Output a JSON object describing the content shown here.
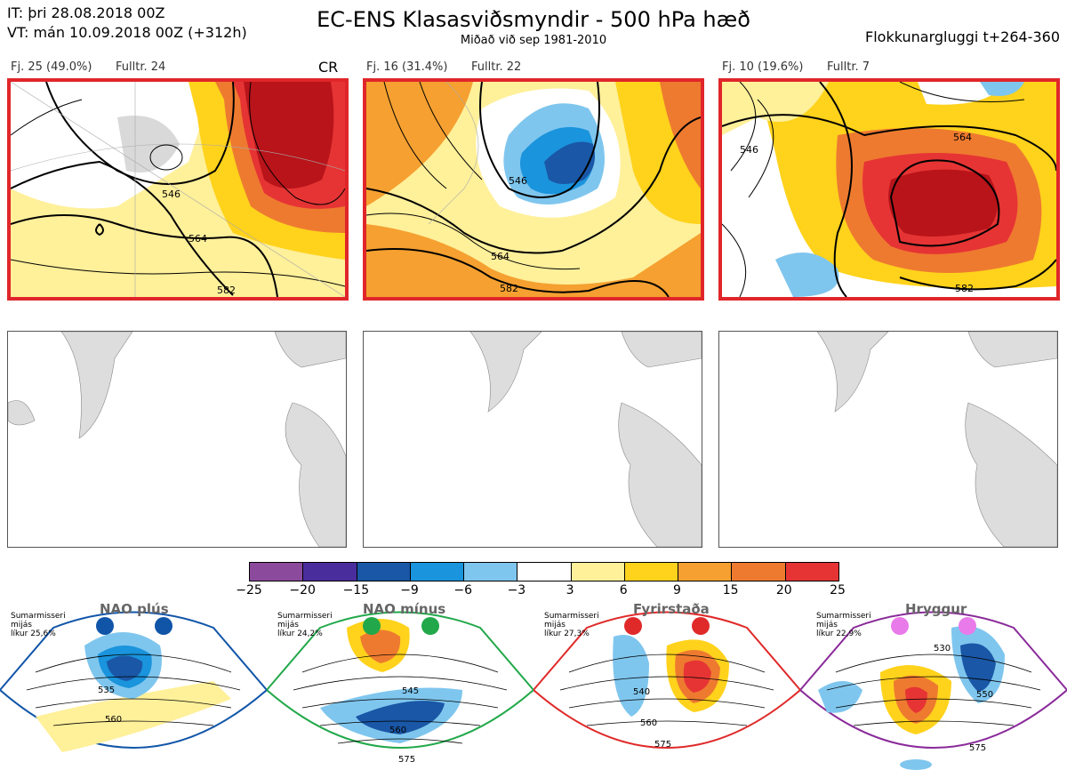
{
  "header": {
    "it_line": "IT: þri 28.08.2018 00Z",
    "vt_line": "VT: mán 10.09.2018 00Z  (+312h)",
    "title": "EC-ENS Klasasviðsmyndir - 500 hPa hæð",
    "subtitle": "Miðað við sep 1981-2010",
    "window": "Flokkunargluggi t+264-360"
  },
  "panels": [
    {
      "count_label": "Fj. 25 (49.0%)",
      "rep_label": "Fulltr. 24",
      "tag": "CR",
      "selected": true,
      "contours": [
        "546",
        "564",
        "582"
      ]
    },
    {
      "count_label": "Fj. 16 (31.4%)",
      "rep_label": "Fulltr. 22",
      "tag": "",
      "selected": true,
      "contours": [
        "546",
        "564",
        "582"
      ]
    },
    {
      "count_label": "Fj. 10 (19.6%)",
      "rep_label": "Fulltr. 7",
      "tag": "",
      "selected": true,
      "contours": [
        "546",
        "564",
        "582"
      ]
    }
  ],
  "colorbar": {
    "colors": [
      "#8b4a9c",
      "#4a2d9c",
      "#1a57a6",
      "#1a94dc",
      "#7fc6ee",
      "#ffffff",
      "#fff09a",
      "#ffd21c",
      "#f5a030",
      "#ee7a30",
      "#e63434",
      "#b8141a"
    ],
    "ticks": [
      "−25",
      "−20",
      "−15",
      "−9",
      "−6",
      "−3",
      "3",
      "6",
      "9",
      "15",
      "20",
      "25"
    ]
  },
  "regimes": [
    {
      "name": "NAO plús",
      "season": "Sumarmisseri",
      "note": "mijás",
      "prob": "líkur 25,6%",
      "color": "#1155a8",
      "contours": [
        "535",
        "560"
      ]
    },
    {
      "name": "NAO mínus",
      "season": "Sumarmisseri",
      "note": "mijás",
      "prob": "líkur 24,2%",
      "color": "#22a84a",
      "contours": [
        "545",
        "560",
        "575"
      ]
    },
    {
      "name": "Fyrirstaða",
      "season": "Sumarmisseri",
      "note": "mijás",
      "prob": "líkur 27,3%",
      "color": "#e02a2a",
      "contours": [
        "540",
        "560",
        "575"
      ]
    },
    {
      "name": "Hryggur",
      "season": "Sumarmisseri",
      "note": "mijás",
      "prob": "líkur 22,9%",
      "color": "#8a2a9a",
      "contours": [
        "530",
        "550",
        "575"
      ]
    }
  ]
}
